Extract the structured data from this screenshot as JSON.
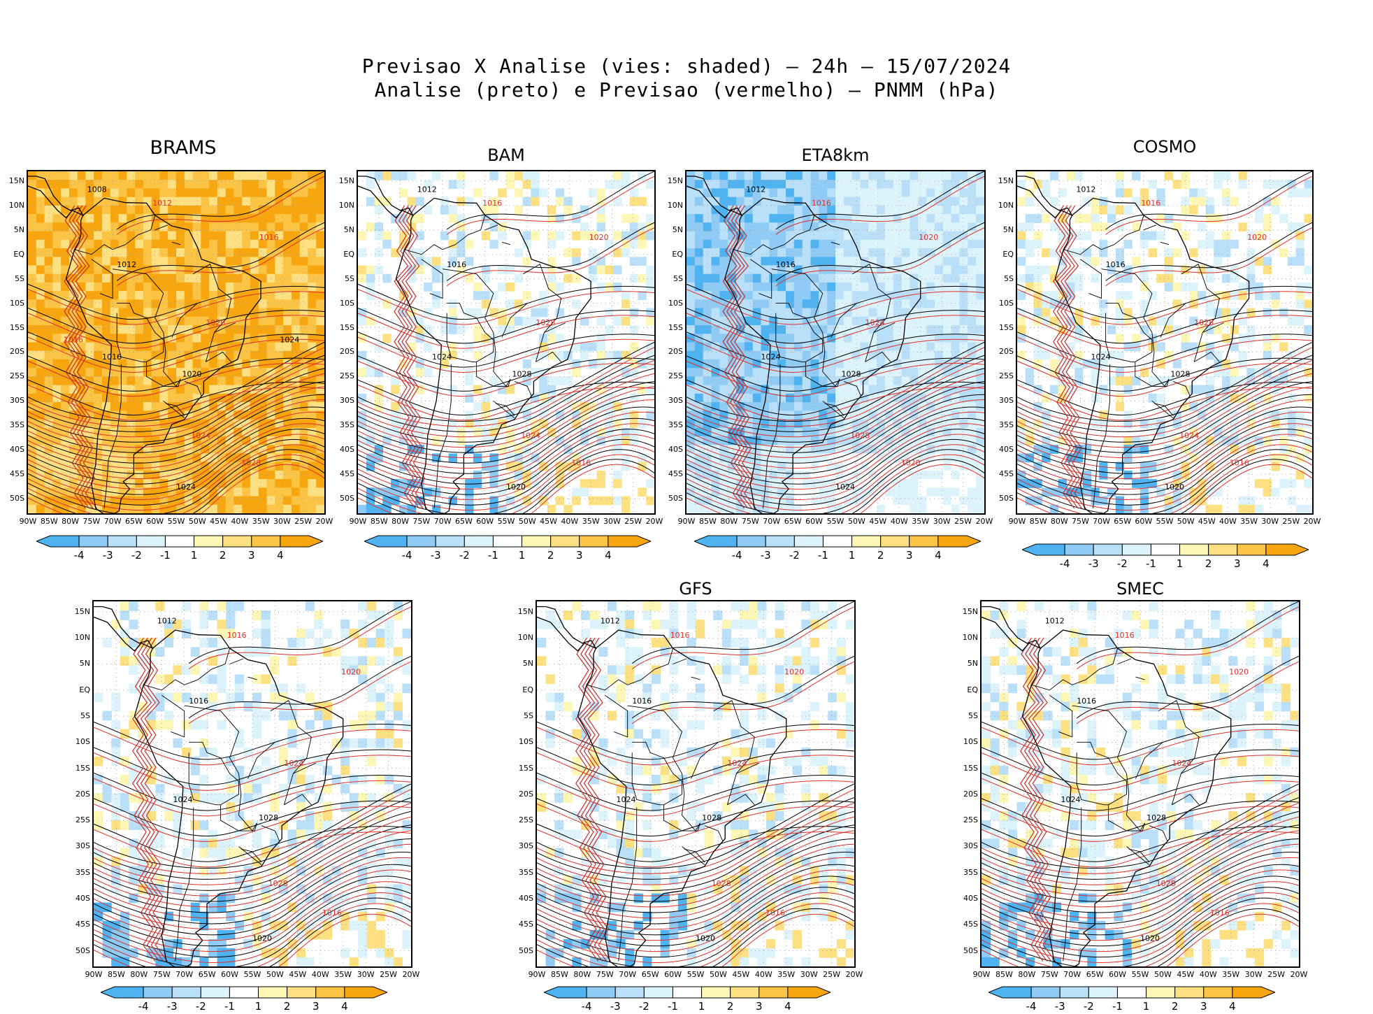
{
  "header": {
    "line1": "Previsao X Analise (vies: shaded) – 24h – 15/07/2024",
    "line2": "Analise (preto) e Previsao (vermelho) – PNMM (hPa)"
  },
  "axes": {
    "lat_labels": [
      "15N",
      "10N",
      "5N",
      "EQ",
      "5S",
      "10S",
      "15S",
      "20S",
      "25S",
      "30S",
      "35S",
      "40S",
      "45S",
      "50S"
    ],
    "lon_labels": [
      "90W",
      "85W",
      "80W",
      "75W",
      "70W",
      "65W",
      "60W",
      "55W",
      "50W",
      "45W",
      "40W",
      "35W",
      "30W",
      "25W",
      "20W"
    ]
  },
  "colorbar": {
    "labels": [
      "-4",
      "-3",
      "-2",
      "-1",
      "1",
      "2",
      "3",
      "4"
    ],
    "colors": [
      "#4eb3f0",
      "#8fcbf5",
      "#b9e0f8",
      "#dcf3fb",
      "#ffffff",
      "#fdf6b4",
      "#fce081",
      "#fbc445",
      "#f7a60f"
    ]
  },
  "colors": {
    "analysis": "#000000",
    "forecast": "#e0302a"
  },
  "panels": [
    {
      "name": "BRAMS",
      "bias": "warm",
      "isobars": [
        "1008",
        "1012",
        "1012",
        "1016",
        "1016",
        "1020",
        "1020",
        "1024",
        "1024",
        "1028",
        "1024",
        "1016"
      ]
    },
    {
      "name": "BAM",
      "bias": "mixed",
      "isobars": [
        "1012",
        "1016",
        "1016",
        "1020",
        "1024",
        "1028",
        "1028",
        "1024",
        "1020",
        "1016"
      ]
    },
    {
      "name": "ETA8km",
      "bias": "cold",
      "isobars": [
        "1012",
        "1016",
        "1016",
        "1020",
        "1024",
        "1024",
        "1028",
        "1028",
        "1024",
        "1020"
      ]
    },
    {
      "name": "COSMO",
      "bias": "mixed",
      "isobars": [
        "1012",
        "1016",
        "1016",
        "1020",
        "1024",
        "1028",
        "1028",
        "1024",
        "1020",
        "1016"
      ]
    },
    {
      "name": "",
      "bias": "mixed",
      "isobars": [
        "1012",
        "1016",
        "1016",
        "1020",
        "1024",
        "1024",
        "1028",
        "1028",
        "1020",
        "1016"
      ]
    },
    {
      "name": "GFS",
      "bias": "mixed",
      "isobars": [
        "1012",
        "1016",
        "1016",
        "1020",
        "1024",
        "1024",
        "1028",
        "1028",
        "1020",
        "1016"
      ]
    },
    {
      "name": "SMEC",
      "bias": "mixed",
      "isobars": [
        "1012",
        "1016",
        "1016",
        "1020",
        "1024",
        "1024",
        "1028",
        "1028",
        "1020",
        "1016"
      ]
    }
  ]
}
